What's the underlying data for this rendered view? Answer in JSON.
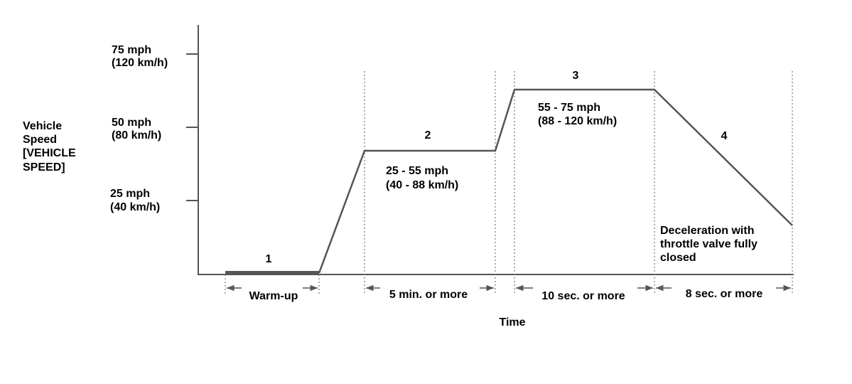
{
  "y_axis": {
    "label_lines": [
      "Vehicle",
      "Speed",
      "[VEHICLE",
      "SPEED]"
    ],
    "ticks": [
      [
        "75 mph",
        "(120 km/h)"
      ],
      [
        "50 mph",
        "(80 km/h)"
      ],
      [
        "25 mph",
        "(40 km/h)"
      ]
    ]
  },
  "x_axis": {
    "label": "Time"
  },
  "phases": [
    {
      "number": "1",
      "duration": "Warm-up"
    },
    {
      "number": "2",
      "speed": [
        "25 - 55 mph",
        "(40 - 88 km/h)"
      ],
      "duration": "5 min. or more"
    },
    {
      "number": "3",
      "speed": [
        "55 - 75 mph",
        "(88 - 120 km/h)"
      ],
      "duration": "10 sec. or more"
    },
    {
      "number": "4",
      "note": [
        "Deceleration with",
        "throttle valve fully",
        "closed"
      ],
      "duration": "8 sec. or more"
    }
  ]
}
